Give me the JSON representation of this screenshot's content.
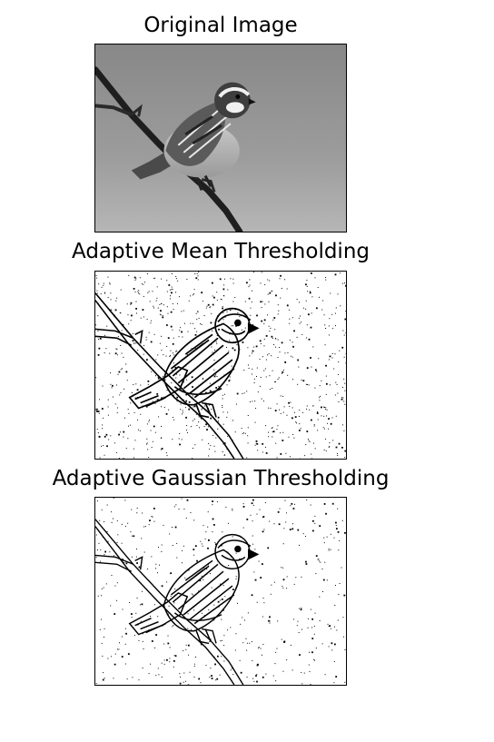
{
  "panels": [
    {
      "title": "Original Image",
      "style": "grayscale",
      "icon": "sparrow-photo"
    },
    {
      "title": "Adaptive Mean Thresholding",
      "style": "binary-mean",
      "icon": "sparrow-threshold-mean"
    },
    {
      "title": "Adaptive Gaussian Thresholding",
      "style": "binary-gaussian",
      "icon": "sparrow-threshold-gaussian"
    }
  ],
  "colors": {
    "foreground": "#000000",
    "background": "#ffffff",
    "photo_background_top": "#8a8a8a",
    "photo_background_bottom": "#b4b4b4"
  }
}
